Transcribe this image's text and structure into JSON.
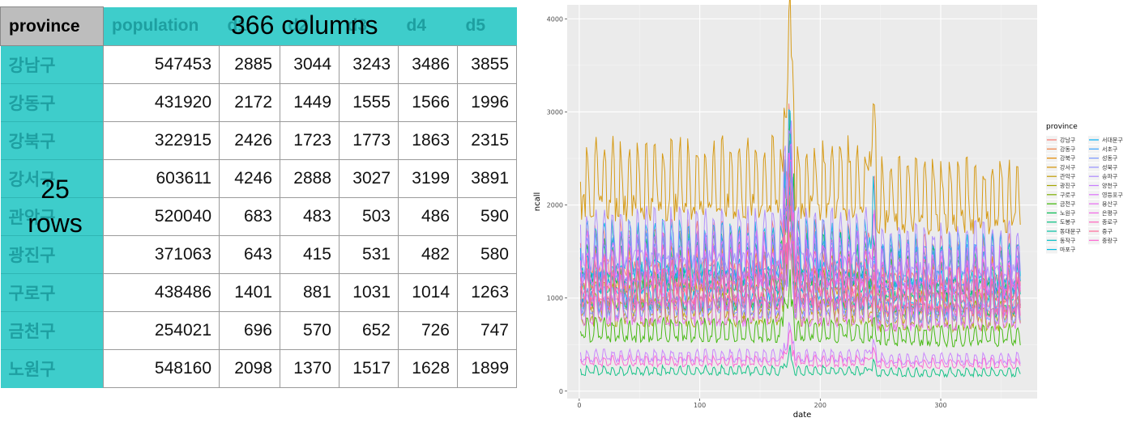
{
  "table": {
    "corner_label": "province",
    "columns": [
      "population",
      "d1",
      "d2",
      "d3",
      "d4",
      "d5"
    ],
    "rows": [
      {
        "province": "강남구",
        "values": [
          "547453",
          "2885",
          "3044",
          "3243",
          "3486",
          "3855"
        ]
      },
      {
        "province": "강동구",
        "values": [
          "431920",
          "2172",
          "1449",
          "1555",
          "1566",
          "1996"
        ]
      },
      {
        "province": "강북구",
        "values": [
          "322915",
          "2426",
          "1723",
          "1773",
          "1863",
          "2315"
        ]
      },
      {
        "province": "강서구",
        "values": [
          "603611",
          "4246",
          "2888",
          "3027",
          "3199",
          "3891"
        ]
      },
      {
        "province": "관악구",
        "values": [
          "520040",
          "683",
          "483",
          "503",
          "486",
          "590"
        ]
      },
      {
        "province": "광진구",
        "values": [
          "371063",
          "643",
          "415",
          "531",
          "482",
          "580"
        ]
      },
      {
        "province": "구로구",
        "values": [
          "438486",
          "1401",
          "881",
          "1031",
          "1014",
          "1263"
        ]
      },
      {
        "province": "금천구",
        "values": [
          "254021",
          "696",
          "570",
          "652",
          "726",
          "747"
        ]
      },
      {
        "province": "노원구",
        "values": [
          "548160",
          "2098",
          "1370",
          "1517",
          "1628",
          "1899"
        ]
      }
    ]
  },
  "annotations": {
    "columns_note": "366 columns",
    "rows_note_line1": "25",
    "rows_note_line2": "rows"
  },
  "chart_data": {
    "type": "line",
    "title": "",
    "xlabel": "date",
    "ylabel": "ncall",
    "xlim": [
      -10,
      380
    ],
    "ylim": [
      -80,
      4150
    ],
    "x_ticks": [
      0,
      100,
      200,
      300
    ],
    "y_ticks": [
      0,
      1000,
      2000,
      3000,
      4000
    ],
    "grid": true,
    "legend_title": "province",
    "legend_position": "right",
    "n_days": 366,
    "series": [
      {
        "name": "강남구",
        "color": "#F8766D",
        "base": 1400,
        "amp": 350
      },
      {
        "name": "강동구",
        "color": "#F17F41",
        "base": 1000,
        "amp": 260
      },
      {
        "name": "강북구",
        "color": "#E38900",
        "base": 1200,
        "amp": 300
      },
      {
        "name": "강서구",
        "color": "#D49200",
        "base": 2100,
        "amp": 500
      },
      {
        "name": "관악구",
        "color": "#C09B00",
        "base": 900,
        "amp": 220
      },
      {
        "name": "광진구",
        "color": "#A3A500",
        "base": 800,
        "amp": 200
      },
      {
        "name": "구로구",
        "color": "#7CAE00",
        "base": 1000,
        "amp": 250
      },
      {
        "name": "금천구",
        "color": "#39B600",
        "base": 600,
        "amp": 150
      },
      {
        "name": "노원구",
        "color": "#00BB4E",
        "base": 1300,
        "amp": 320
      },
      {
        "name": "도봉구",
        "color": "#00BF7D",
        "base": 200,
        "amp": 60
      },
      {
        "name": "동대문구",
        "color": "#00C1A3",
        "base": 1200,
        "amp": 300
      },
      {
        "name": "동작구",
        "color": "#00BFC4",
        "base": 1000,
        "amp": 250
      },
      {
        "name": "마포구",
        "color": "#00BAE0",
        "base": 1400,
        "amp": 350
      },
      {
        "name": "서대문구",
        "color": "#00B0F6",
        "base": 1100,
        "amp": 280
      },
      {
        "name": "서초구",
        "color": "#35A2FF",
        "base": 1300,
        "amp": 330
      },
      {
        "name": "성동구",
        "color": "#7997FF",
        "base": 900,
        "amp": 220
      },
      {
        "name": "성북구",
        "color": "#9590FF",
        "base": 1000,
        "amp": 250
      },
      {
        "name": "송파구",
        "color": "#AC88FF",
        "base": 1500,
        "amp": 380
      },
      {
        "name": "양천구",
        "color": "#C77CFF",
        "base": 350,
        "amp": 80
      },
      {
        "name": "영등포구",
        "color": "#DC71FA",
        "base": 1300,
        "amp": 330
      },
      {
        "name": "용산구",
        "color": "#E76BF3",
        "base": 800,
        "amp": 200
      },
      {
        "name": "은평구",
        "color": "#F365E6",
        "base": 1200,
        "amp": 300
      },
      {
        "name": "종로구",
        "color": "#FF62BC",
        "base": 1000,
        "amp": 250
      },
      {
        "name": "중구",
        "color": "#FF6A98",
        "base": 1100,
        "amp": 280
      },
      {
        "name": "중랑구",
        "color": "#FD61D1",
        "base": 300,
        "amp": 70
      }
    ]
  }
}
